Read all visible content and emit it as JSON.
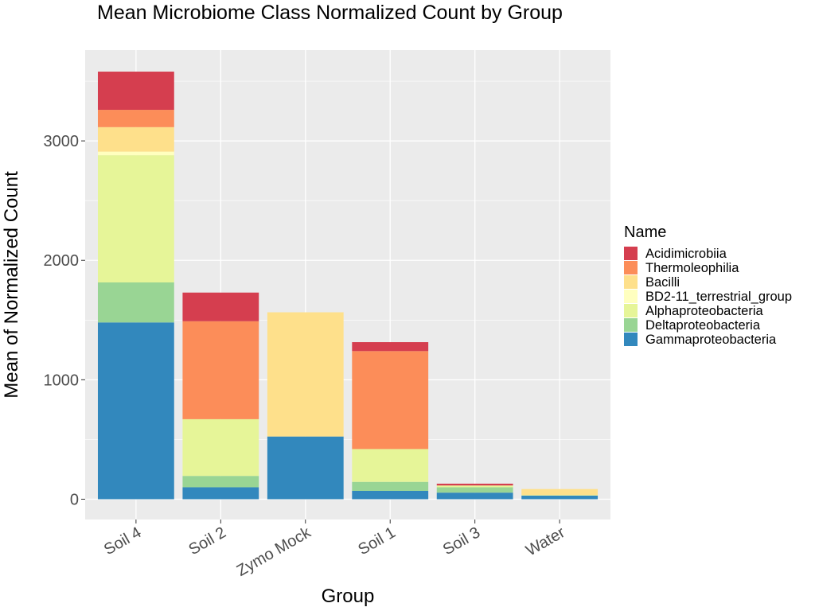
{
  "chart_data": {
    "type": "bar",
    "stacked": true,
    "title": "Mean Microbiome Class Normalized Count by Group",
    "xlabel": "Group",
    "ylabel": "Mean of Normalized Count",
    "categories": [
      "Soil 4",
      "Soil 2",
      "Zymo Mock",
      "Soil 1",
      "Soil 3",
      "Water"
    ],
    "ylim": [
      -170,
      3760
    ],
    "yticks": [
      0,
      1000,
      2000,
      3000
    ],
    "ytick_labels": [
      "0",
      "1000",
      "2000",
      "3000"
    ],
    "legend_title": "Name",
    "legend_position": "right",
    "grid": true,
    "series": [
      {
        "name": "Gammaproteobacteria",
        "color": "#3288bd",
        "values": [
          1480,
          100,
          525,
          70,
          55,
          30
        ]
      },
      {
        "name": "Deltaproteobacteria",
        "color": "#99d594",
        "values": [
          335,
          95,
          0,
          75,
          45,
          0
        ]
      },
      {
        "name": "Alphaproteobacteria",
        "color": "#e6f598",
        "values": [
          1065,
          475,
          0,
          275,
          15,
          5
        ]
      },
      {
        "name": "BD2-11_terrestrial_group",
        "color": "#ffffbf",
        "values": [
          30,
          0,
          0,
          0,
          0,
          0
        ]
      },
      {
        "name": "Bacilli",
        "color": "#fee08b",
        "values": [
          205,
          0,
          1040,
          0,
          0,
          50
        ]
      },
      {
        "name": "Thermoleophilia",
        "color": "#fc8d59",
        "values": [
          145,
          820,
          0,
          820,
          0,
          0
        ]
      },
      {
        "name": "Acidimicrobiia",
        "color": "#d53e4f",
        "values": [
          320,
          240,
          0,
          75,
          15,
          0
        ]
      }
    ],
    "legend_order": [
      "Acidimicrobiia",
      "Thermoleophilia",
      "Bacilli",
      "BD2-11_terrestrial_group",
      "Alphaproteobacteria",
      "Deltaproteobacteria",
      "Gammaproteobacteria"
    ]
  },
  "style": {
    "panel_background": "#ebebeb",
    "grid_color": "#ffffff",
    "tick_color": "#333333"
  }
}
